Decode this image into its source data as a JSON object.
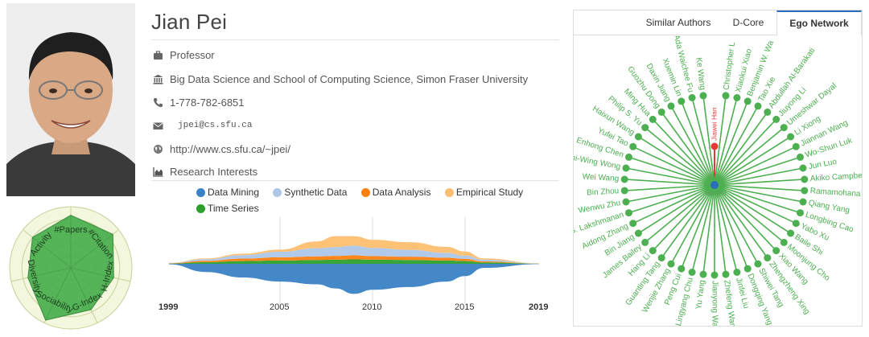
{
  "profile": {
    "name": "Jian Pei",
    "position": "Professor",
    "affiliation": "Big Data Science and School of Computing Science, Simon Fraser University",
    "phone": "1-778-782-6851",
    "email": "jpei@cs.sfu.ca",
    "homepage": "http://www.cs.sfu.ca/~jpei/",
    "interests_heading": "Research Interests"
  },
  "radar": {
    "axes": [
      "#Papers",
      "#Citation",
      "H-Index",
      "G-Index",
      "Sociability",
      "Diversity",
      "Activity"
    ],
    "values": [
      0.86,
      0.88,
      0.72,
      0.76,
      0.95,
      0.72,
      0.8
    ],
    "fill_color": "#4caf50"
  },
  "interests": {
    "legend": [
      {
        "label": "Data Mining",
        "color": "#3b82c4"
      },
      {
        "label": "Synthetic Data",
        "color": "#aec7e8"
      },
      {
        "label": "Data Analysis",
        "color": "#ff7f0e"
      },
      {
        "label": "Empirical Study",
        "color": "#fdbf6f"
      },
      {
        "label": "Time Series",
        "color": "#2ca02c"
      }
    ],
    "axis_ticks": [
      "1999",
      "2005",
      "2010",
      "2015",
      "2019"
    ],
    "chart_data": {
      "type": "area",
      "title": "Research Interests",
      "x": [
        1999,
        2001,
        2003,
        2005,
        2007,
        2008,
        2009,
        2010,
        2012,
        2014,
        2015,
        2016,
        2019
      ],
      "series": [
        {
          "name": "Data Mining",
          "values": [
            0.2,
            3.0,
            5.0,
            6.5,
            7.5,
            9.0,
            11.0,
            9.5,
            8.5,
            6.5,
            4.5,
            1.5,
            0.1
          ]
        },
        {
          "name": "Time Series",
          "values": [
            0.1,
            0.6,
            1.0,
            1.2,
            1.4,
            1.5,
            1.6,
            1.5,
            1.4,
            1.2,
            1.0,
            0.5,
            0.05
          ]
        },
        {
          "name": "Data Analysis",
          "values": [
            0.1,
            0.5,
            0.9,
            1.2,
            1.3,
            1.4,
            1.5,
            1.3,
            1.2,
            1.0,
            0.8,
            0.4,
            0.05
          ]
        },
        {
          "name": "Synthetic Data",
          "values": [
            0.1,
            0.6,
            1.3,
            2.0,
            3.0,
            3.2,
            3.5,
            3.0,
            2.5,
            1.8,
            1.2,
            0.6,
            0.05
          ]
        },
        {
          "name": "Empirical Study",
          "values": [
            0.05,
            0.3,
            0.5,
            0.8,
            2.5,
            4.0,
            3.5,
            3.0,
            2.8,
            2.2,
            1.5,
            0.5,
            0.05
          ]
        }
      ]
    }
  },
  "tabs": [
    {
      "label": "Similar Authors",
      "active": false
    },
    {
      "label": "D-Core",
      "active": false
    },
    {
      "label": "Ego Network",
      "active": true
    }
  ],
  "ego_network": {
    "center": "Jian Pei",
    "highlight": "Jiawei Han",
    "node_color": "#4caf50",
    "highlight_color": "#e53935",
    "center_color": "#2a6ebb",
    "coauthors": [
      "Jiawei Han",
      "Christopher L",
      "Xiaokui Xiao",
      "Benjamin W. Wa",
      "Tao Xie",
      "Abdullah Al-Barakati",
      "Jiuyong Li",
      "Umeshwar Dayal",
      "Li Xiong",
      "Jiannan Wang",
      "Wo-Shun Luk",
      "Jun Luo",
      "Akiko Campbe",
      "Ramamohana",
      "Qiang Yang",
      "Longbing Cao",
      "Yabo Xu",
      "Baile Shi",
      "Moonjung Cho",
      "Xiao Wang",
      "Zhengzheng Xing",
      "Shiwei Tang",
      "Dongqing Yang",
      "Jinfei Liu",
      "Zhefeng Wang",
      "Jianyong Wang",
      "Yu Yang",
      "Lingyang Chu",
      "Peng Cui",
      "Wenjie Zhang",
      "Guanting Tang",
      "Hang Li",
      "James Bailey",
      "Bin Jiang",
      "Aidong Zhang",
      "S. Lakshmanan",
      "Wenwu Zhu",
      "Bin Zhou",
      "Wei Wang",
      "Chi-Wing Wong",
      "Enhong Chen",
      "Yufei Tao",
      "Haixun Wang",
      "Philip S. Yu",
      "Ming Hua",
      "Guozhu Dong",
      "Daxin Jiang",
      "Xuemin Lin",
      "Ada Waichee Fu",
      "Ke Wang"
    ]
  }
}
